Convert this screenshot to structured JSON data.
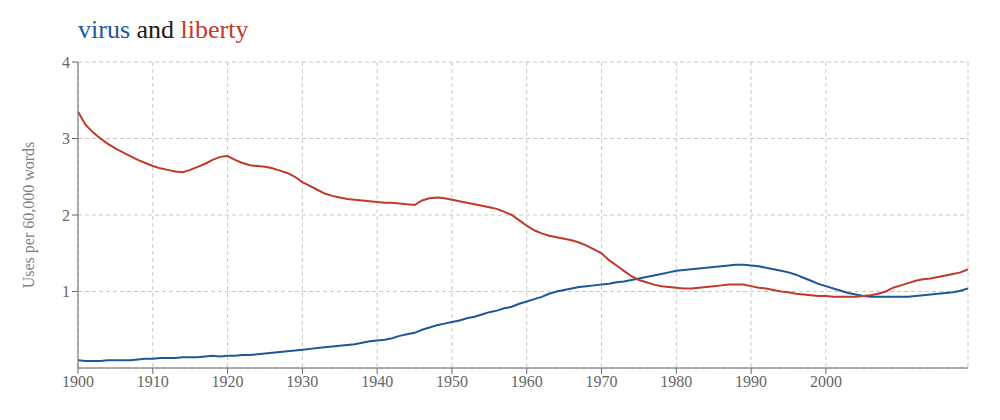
{
  "chart_data": {
    "type": "line",
    "title": "virus and liberty",
    "y_label": "Uses per 60,000 words",
    "x": [
      1900,
      1901,
      1902,
      1903,
      1904,
      1905,
      1906,
      1907,
      1908,
      1909,
      1910,
      1911,
      1912,
      1913,
      1914,
      1915,
      1916,
      1917,
      1918,
      1919,
      1920,
      1921,
      1922,
      1923,
      1924,
      1925,
      1926,
      1927,
      1928,
      1929,
      1930,
      1931,
      1932,
      1933,
      1934,
      1935,
      1936,
      1937,
      1938,
      1939,
      1940,
      1941,
      1942,
      1943,
      1944,
      1945,
      1946,
      1947,
      1948,
      1949,
      1950,
      1951,
      1952,
      1953,
      1954,
      1955,
      1956,
      1957,
      1958,
      1959,
      1960,
      1961,
      1962,
      1963,
      1964,
      1965,
      1966,
      1967,
      1968,
      1969,
      1970,
      1971,
      1972,
      1973,
      1974,
      1975,
      1976,
      1977,
      1978,
      1979,
      1980,
      1981,
      1982,
      1983,
      1984,
      1985,
      1986,
      1987,
      1988,
      1989,
      1990,
      1991,
      1992,
      1993,
      1994,
      1995,
      1996,
      1997,
      1998,
      1999,
      2000,
      2001,
      2002,
      2003,
      2004,
      2005,
      2006,
      2007,
      2008,
      2009,
      2010,
      2011,
      2012,
      2013,
      2014,
      2015,
      2016,
      2017,
      2018,
      2019
    ],
    "series": [
      {
        "name": "virus",
        "color": "#1e5799",
        "values": [
          0.1,
          0.09,
          0.09,
          0.09,
          0.1,
          0.1,
          0.1,
          0.1,
          0.11,
          0.12,
          0.12,
          0.13,
          0.13,
          0.13,
          0.14,
          0.14,
          0.14,
          0.15,
          0.16,
          0.15,
          0.16,
          0.16,
          0.17,
          0.17,
          0.18,
          0.19,
          0.2,
          0.21,
          0.22,
          0.23,
          0.24,
          0.25,
          0.26,
          0.27,
          0.28,
          0.29,
          0.3,
          0.31,
          0.33,
          0.35,
          0.36,
          0.37,
          0.39,
          0.42,
          0.44,
          0.46,
          0.5,
          0.53,
          0.56,
          0.58,
          0.6,
          0.62,
          0.65,
          0.67,
          0.7,
          0.73,
          0.75,
          0.78,
          0.8,
          0.84,
          0.87,
          0.9,
          0.93,
          0.97,
          1.0,
          1.02,
          1.04,
          1.06,
          1.07,
          1.08,
          1.09,
          1.1,
          1.12,
          1.13,
          1.15,
          1.17,
          1.19,
          1.21,
          1.23,
          1.25,
          1.27,
          1.28,
          1.29,
          1.3,
          1.31,
          1.32,
          1.33,
          1.34,
          1.35,
          1.35,
          1.34,
          1.33,
          1.31,
          1.29,
          1.27,
          1.25,
          1.22,
          1.18,
          1.14,
          1.1,
          1.07,
          1.04,
          1.01,
          0.98,
          0.96,
          0.94,
          0.93,
          0.93,
          0.93,
          0.93,
          0.93,
          0.93,
          0.94,
          0.95,
          0.96,
          0.97,
          0.98,
          0.99,
          1.01,
          1.04
        ]
      },
      {
        "name": "liberty",
        "color": "#c0392b",
        "values": [
          3.35,
          3.18,
          3.08,
          3.0,
          2.93,
          2.87,
          2.82,
          2.77,
          2.72,
          2.68,
          2.64,
          2.61,
          2.59,
          2.57,
          2.56,
          2.59,
          2.63,
          2.67,
          2.72,
          2.76,
          2.77,
          2.72,
          2.68,
          2.65,
          2.64,
          2.63,
          2.61,
          2.58,
          2.55,
          2.5,
          2.43,
          2.38,
          2.33,
          2.28,
          2.25,
          2.23,
          2.21,
          2.2,
          2.19,
          2.18,
          2.17,
          2.16,
          2.16,
          2.15,
          2.14,
          2.13,
          2.19,
          2.22,
          2.23,
          2.22,
          2.2,
          2.18,
          2.16,
          2.14,
          2.12,
          2.1,
          2.08,
          2.04,
          2.0,
          1.93,
          1.86,
          1.8,
          1.76,
          1.73,
          1.71,
          1.69,
          1.67,
          1.64,
          1.6,
          1.55,
          1.5,
          1.41,
          1.34,
          1.27,
          1.2,
          1.15,
          1.12,
          1.09,
          1.07,
          1.06,
          1.05,
          1.04,
          1.04,
          1.05,
          1.06,
          1.07,
          1.08,
          1.09,
          1.09,
          1.09,
          1.07,
          1.05,
          1.04,
          1.02,
          1.0,
          0.99,
          0.97,
          0.96,
          0.95,
          0.94,
          0.94,
          0.93,
          0.93,
          0.93,
          0.93,
          0.94,
          0.95,
          0.97,
          1.0,
          1.05,
          1.08,
          1.11,
          1.14,
          1.16,
          1.17,
          1.19,
          1.21,
          1.23,
          1.25,
          1.29
        ]
      }
    ],
    "xlim": [
      1900,
      2019
    ],
    "xticks": [
      1900,
      1910,
      1920,
      1930,
      1940,
      1950,
      1960,
      1970,
      1980,
      1990,
      2000
    ],
    "ylim": [
      0,
      4.0
    ],
    "yticks": [
      1,
      2,
      3,
      4
    ],
    "grid": true
  }
}
